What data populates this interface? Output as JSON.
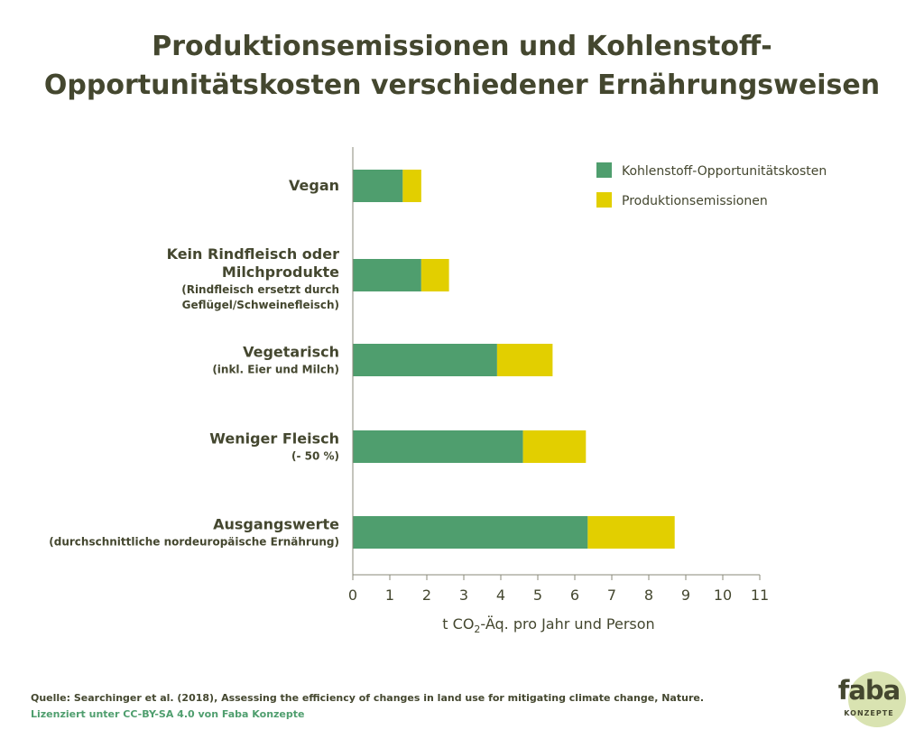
{
  "title": {
    "line1": "Produktionsemissionen und Kohlenstoff-",
    "line2": "Opportunitätskosten verschiedener Ernährungsweisen"
  },
  "chart_data": {
    "type": "bar",
    "orientation": "horizontal",
    "stacked": true,
    "categories": [
      {
        "main": [
          "Vegan"
        ],
        "sub": []
      },
      {
        "main": [
          "Kein Rindfleisch oder",
          "Milchprodukte"
        ],
        "sub": [
          "(Rindfleisch ersetzt durch",
          "Geflügel/Schweinefleisch)"
        ]
      },
      {
        "main": [
          "Vegetarisch"
        ],
        "sub": [
          "(inkl. Eier und Milch)"
        ]
      },
      {
        "main": [
          "Weniger Fleisch"
        ],
        "sub": [
          "(- 50 %)"
        ]
      },
      {
        "main": [
          "Ausgangswerte"
        ],
        "sub": [
          "(durchschnittliche nordeuropäische Ernährung)"
        ]
      }
    ],
    "series": [
      {
        "name": "Kohlenstoff-Opportunitätskosten",
        "color": "#4f9e6e",
        "values": [
          1.35,
          1.85,
          3.9,
          4.6,
          6.35
        ]
      },
      {
        "name": "Produktionsemissionen",
        "color": "#e2cf00",
        "values": [
          0.5,
          0.75,
          1.5,
          1.7,
          2.35
        ]
      }
    ],
    "xlim": [
      0,
      11
    ],
    "xticks": [
      "0",
      "1",
      "2",
      "3",
      "4",
      "5",
      "6",
      "7",
      "8",
      "9",
      "10",
      "11"
    ],
    "xlabel_prefix": "t CO",
    "xlabel_sub": "2",
    "xlabel_suffix": "-Äq. pro Jahr und Person",
    "legend_position": "top-right",
    "grid": false
  },
  "footer": {
    "source": "Quelle: Searchinger et al. (2018), Assessing the efficiency of changes in land use for mitigating climate change, Nature.",
    "license": "Lizenziert unter CC-BY-SA 4.0 von Faba Konzepte"
  },
  "logo": {
    "word": "faba",
    "sub": "KONZEPTE"
  }
}
